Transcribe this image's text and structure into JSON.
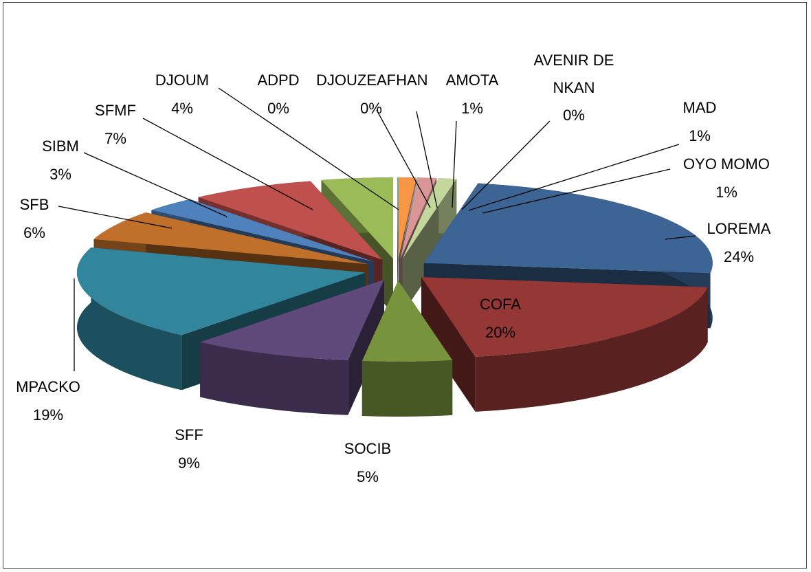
{
  "chart_data": {
    "type": "pie",
    "categories": [
      "ADPD",
      "DJOUZEAFHAN",
      "AMOTA",
      "AVENIR DE NKAN",
      "MAD",
      "OYO MOMO",
      "LOREMA",
      "COFA",
      "SOCIB",
      "SFF",
      "MPACKO",
      "SFB",
      "SIBM",
      "SFMF",
      "DJOUM"
    ],
    "values": [
      0,
      0,
      1,
      0,
      1,
      1,
      24,
      20,
      5,
      9,
      19,
      6,
      3,
      7,
      4
    ],
    "value_labels": [
      "0%",
      "0%",
      "1%",
      "0%",
      "1%",
      "1%",
      "24%",
      "20%",
      "5%",
      "9%",
      "19%",
      "6%",
      "3%",
      "7%",
      "4%"
    ],
    "colors": [
      "#8064a2",
      "#4bacc6",
      "#f79646",
      "#95b3d7",
      "#d99694",
      "#c3d69b",
      "#3c6494",
      "#953735",
      "#77933c",
      "#604a7b",
      "#31859c",
      "#c0702a",
      "#4f81bd",
      "#c0504d",
      "#9bbb59"
    ]
  }
}
